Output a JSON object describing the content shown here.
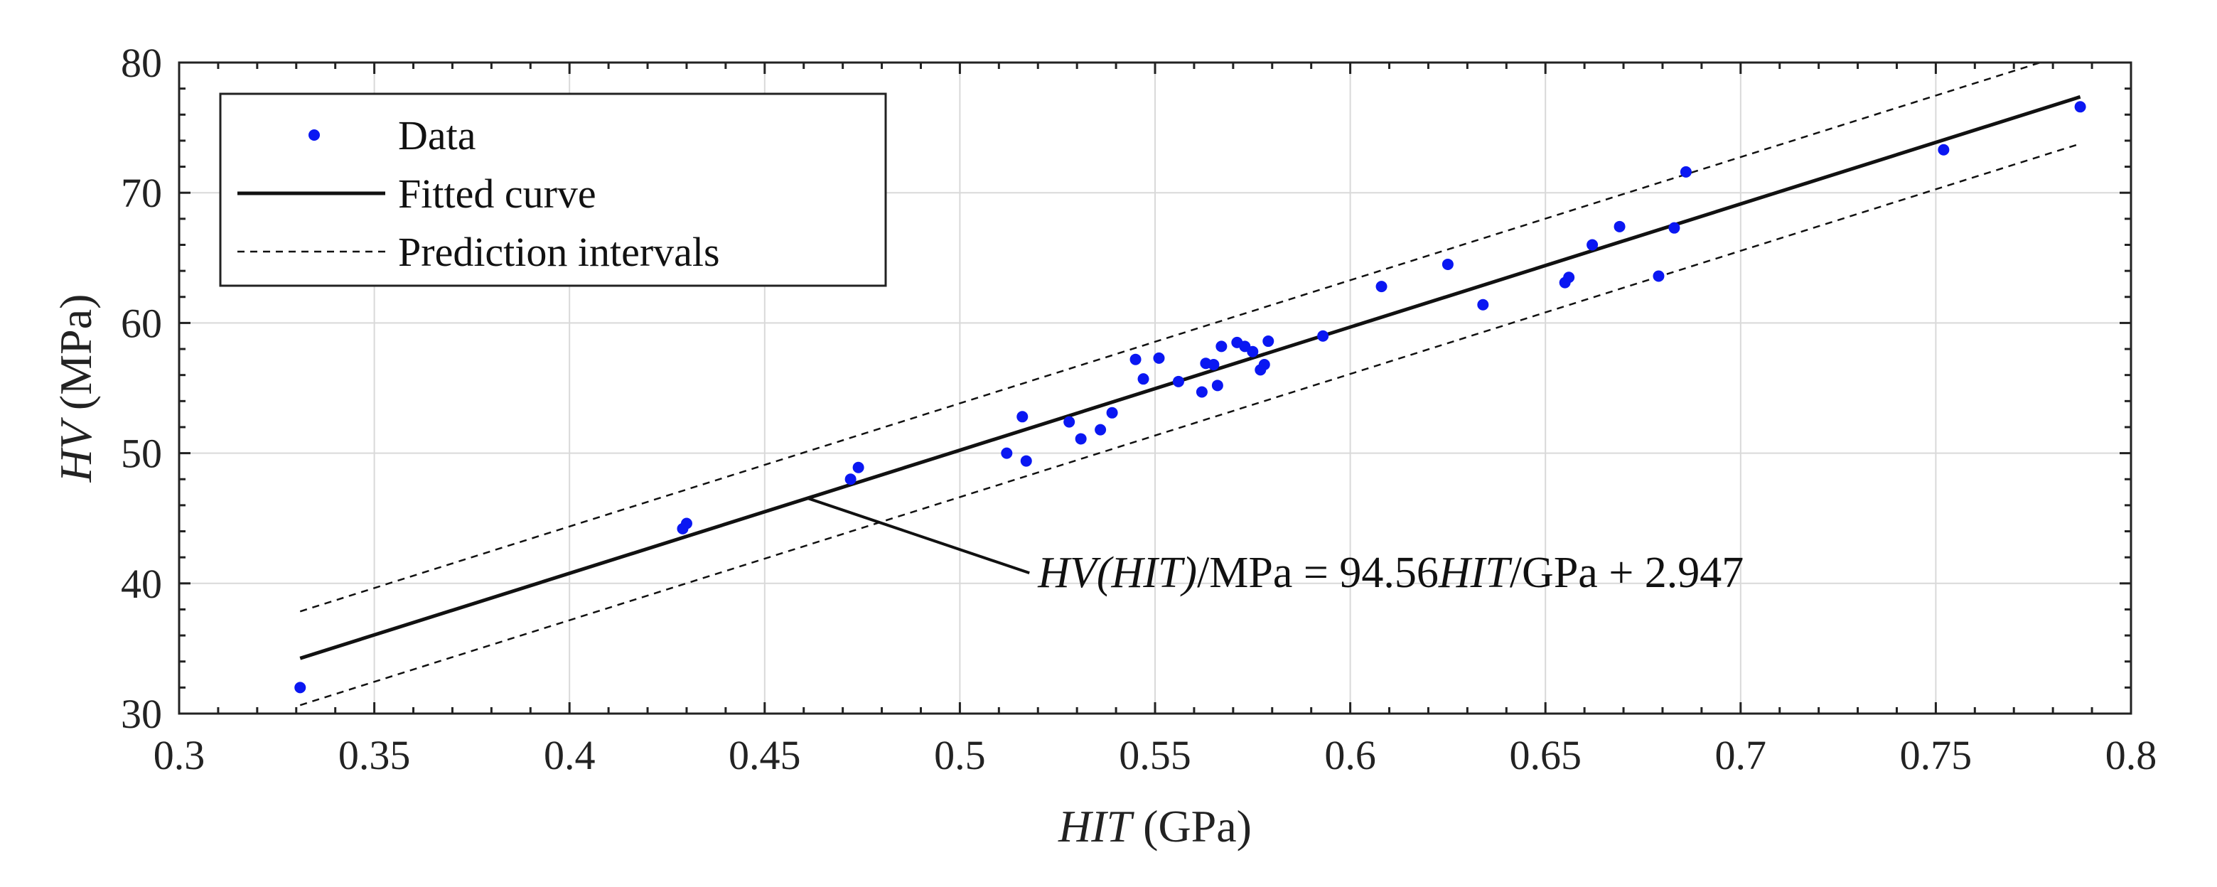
{
  "chart_data": {
    "type": "scatter",
    "title": "",
    "xlabel": {
      "italic": "HIT",
      "plain": " (GPa)"
    },
    "ylabel": {
      "italic": "HV",
      "plain": " (MPa)"
    },
    "xlim": [
      0.3,
      0.8
    ],
    "ylim": [
      30,
      80
    ],
    "xticks": [
      "0.3",
      "0.35",
      "0.4",
      "0.45",
      "0.5",
      "0.55",
      "0.6",
      "0.65",
      "0.7",
      "0.75",
      "0.8"
    ],
    "yticks": [
      "30",
      "40",
      "50",
      "60",
      "70",
      "80"
    ],
    "grid": true,
    "legend": {
      "position": "top-left",
      "entries": [
        "Data",
        "Fitted curve",
        "Prediction intervals"
      ]
    },
    "series": [
      {
        "name": "Data",
        "kind": "points",
        "color": "#0a17f2",
        "points": [
          [
            0.331,
            32.0
          ],
          [
            0.429,
            44.2
          ],
          [
            0.43,
            44.6
          ],
          [
            0.472,
            48.0
          ],
          [
            0.474,
            48.9
          ],
          [
            0.512,
            50.0
          ],
          [
            0.516,
            52.8
          ],
          [
            0.517,
            49.4
          ],
          [
            0.528,
            52.4
          ],
          [
            0.531,
            51.1
          ],
          [
            0.536,
            51.8
          ],
          [
            0.539,
            53.1
          ],
          [
            0.545,
            57.2
          ],
          [
            0.547,
            55.7
          ],
          [
            0.551,
            57.3
          ],
          [
            0.556,
            55.5
          ],
          [
            0.562,
            54.7
          ],
          [
            0.563,
            56.9
          ],
          [
            0.565,
            56.8
          ],
          [
            0.566,
            55.2
          ],
          [
            0.567,
            58.2
          ],
          [
            0.571,
            58.5
          ],
          [
            0.573,
            58.2
          ],
          [
            0.575,
            57.8
          ],
          [
            0.577,
            56.4
          ],
          [
            0.578,
            56.8
          ],
          [
            0.579,
            58.6
          ],
          [
            0.593,
            59.0
          ],
          [
            0.608,
            62.8
          ],
          [
            0.625,
            64.5
          ],
          [
            0.634,
            61.4
          ],
          [
            0.655,
            63.1
          ],
          [
            0.656,
            63.5
          ],
          [
            0.662,
            66.0
          ],
          [
            0.669,
            67.4
          ],
          [
            0.679,
            63.6
          ],
          [
            0.683,
            67.3
          ],
          [
            0.686,
            71.6
          ],
          [
            0.752,
            73.3
          ],
          [
            0.787,
            76.6
          ]
        ]
      },
      {
        "name": "Fitted curve",
        "kind": "line",
        "slope": 94.56,
        "intercept": 2.947,
        "x_range": [
          0.331,
          0.787
        ]
      },
      {
        "name": "Prediction intervals",
        "kind": "band",
        "half_width": 3.6,
        "x_range": [
          0.331,
          0.787
        ]
      }
    ],
    "annotation": {
      "anchor": [
        0.461,
        46.54
      ],
      "label_anchor": [
        0.52,
        40.8
      ],
      "parts": [
        {
          "text": "HV(HIT)",
          "italic": true
        },
        {
          "text": "/MPa = 94.56",
          "italic": false
        },
        {
          "text": "HIT",
          "italic": true
        },
        {
          "text": "/GPa + 2.947",
          "italic": false
        }
      ]
    }
  }
}
